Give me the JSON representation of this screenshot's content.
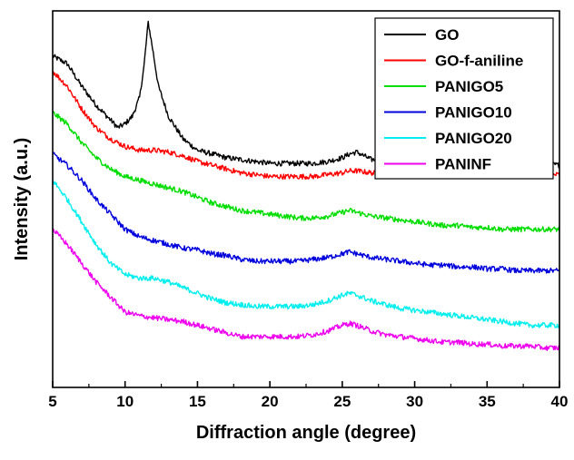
{
  "chart_data": {
    "type": "line",
    "title": "",
    "xlabel": "Diffraction angle (degree)",
    "ylabel": "Intensity (a.u.)",
    "xlim": [
      5,
      40
    ],
    "ylim": [
      0,
      100
    ],
    "x_ticks": [
      5,
      10,
      15,
      20,
      25,
      30,
      35,
      40
    ],
    "y_tick_labels_shown": false,
    "grid": false,
    "legend_position": "top-right",
    "series": [
      {
        "name": "GO",
        "color": "#000000",
        "points": [
          [
            5,
            88
          ],
          [
            6,
            86
          ],
          [
            7,
            80
          ],
          [
            8,
            75
          ],
          [
            9,
            71
          ],
          [
            9.5,
            69
          ],
          [
            10,
            70
          ],
          [
            10.5,
            72
          ],
          [
            11,
            77
          ],
          [
            11.3,
            85
          ],
          [
            11.6,
            97
          ],
          [
            11.9,
            90
          ],
          [
            12.3,
            80
          ],
          [
            13,
            72
          ],
          [
            14,
            66
          ],
          [
            15,
            63
          ],
          [
            16,
            62
          ],
          [
            17,
            61
          ],
          [
            18,
            60.5
          ],
          [
            19,
            60
          ],
          [
            20,
            59.5
          ],
          [
            21,
            59.5
          ],
          [
            22,
            59.5
          ],
          [
            23,
            59.5
          ],
          [
            24,
            60
          ],
          [
            25,
            61
          ],
          [
            25.5,
            62
          ],
          [
            26,
            62.5
          ],
          [
            26.5,
            61.5
          ],
          [
            27,
            60.5
          ],
          [
            28,
            60.5
          ],
          [
            29,
            60.5
          ],
          [
            30,
            61
          ],
          [
            31,
            61
          ],
          [
            32,
            61
          ],
          [
            33,
            61
          ],
          [
            34,
            61
          ],
          [
            35,
            60.5
          ],
          [
            36,
            60
          ],
          [
            37,
            60
          ],
          [
            38,
            59.5
          ],
          [
            39,
            59.5
          ],
          [
            40,
            59
          ]
        ]
      },
      {
        "name": "GO-f-aniline",
        "color": "#ff0000",
        "points": [
          [
            5,
            84
          ],
          [
            6,
            80
          ],
          [
            7,
            74
          ],
          [
            8,
            69
          ],
          [
            9,
            66
          ],
          [
            10,
            64
          ],
          [
            11,
            63
          ],
          [
            12,
            63
          ],
          [
            13,
            62.5
          ],
          [
            14,
            61.5
          ],
          [
            15,
            60
          ],
          [
            16,
            59
          ],
          [
            17,
            58
          ],
          [
            18,
            57
          ],
          [
            19,
            56.5
          ],
          [
            20,
            56
          ],
          [
            21,
            56
          ],
          [
            22,
            56
          ],
          [
            23,
            56
          ],
          [
            24,
            56.5
          ],
          [
            25,
            57
          ],
          [
            25.5,
            57.5
          ],
          [
            26,
            57.5
          ],
          [
            27,
            57
          ],
          [
            28,
            56.5
          ],
          [
            29,
            56.5
          ],
          [
            30,
            56.5
          ],
          [
            31,
            56.5
          ],
          [
            32,
            56.5
          ],
          [
            33,
            56.5
          ],
          [
            34,
            56.5
          ],
          [
            35,
            56.5
          ],
          [
            36,
            56.5
          ],
          [
            37,
            56.5
          ],
          [
            38,
            56.5
          ],
          [
            39,
            56.5
          ],
          [
            40,
            56.5
          ]
        ]
      },
      {
        "name": "PANIGO5",
        "color": "#00dd00",
        "points": [
          [
            5,
            73
          ],
          [
            6,
            70
          ],
          [
            7,
            65
          ],
          [
            8,
            61
          ],
          [
            9,
            58
          ],
          [
            10,
            56
          ],
          [
            11,
            55
          ],
          [
            12,
            54
          ],
          [
            13,
            53
          ],
          [
            14,
            52
          ],
          [
            15,
            50.5
          ],
          [
            16,
            49
          ],
          [
            17,
            48
          ],
          [
            18,
            47
          ],
          [
            19,
            46.5
          ],
          [
            20,
            46
          ],
          [
            21,
            45.5
          ],
          [
            22,
            45
          ],
          [
            23,
            45
          ],
          [
            24,
            45.5
          ],
          [
            25,
            46.5
          ],
          [
            25.5,
            47
          ],
          [
            26,
            46.5
          ],
          [
            27,
            45.5
          ],
          [
            28,
            45
          ],
          [
            29,
            44.5
          ],
          [
            30,
            44
          ],
          [
            31,
            43.5
          ],
          [
            32,
            43
          ],
          [
            33,
            43
          ],
          [
            34,
            42.5
          ],
          [
            35,
            42.5
          ],
          [
            36,
            42
          ],
          [
            37,
            42
          ],
          [
            38,
            42
          ],
          [
            39,
            42
          ],
          [
            40,
            42
          ]
        ]
      },
      {
        "name": "PANIGO10",
        "color": "#0000dd",
        "points": [
          [
            5,
            62
          ],
          [
            6,
            59
          ],
          [
            7,
            55
          ],
          [
            8,
            50
          ],
          [
            9,
            46
          ],
          [
            10,
            42
          ],
          [
            11,
            40
          ],
          [
            12,
            39
          ],
          [
            13,
            38
          ],
          [
            14,
            37
          ],
          [
            15,
            36.5
          ],
          [
            16,
            35.5
          ],
          [
            17,
            35
          ],
          [
            18,
            34
          ],
          [
            19,
            33.5
          ],
          [
            20,
            33.5
          ],
          [
            21,
            33.5
          ],
          [
            22,
            33.5
          ],
          [
            23,
            34
          ],
          [
            24,
            34.5
          ],
          [
            25,
            35.5
          ],
          [
            25.5,
            36
          ],
          [
            26,
            35.5
          ],
          [
            27,
            34.5
          ],
          [
            28,
            34
          ],
          [
            29,
            33.5
          ],
          [
            30,
            33
          ],
          [
            31,
            32.5
          ],
          [
            32,
            32.5
          ],
          [
            33,
            32
          ],
          [
            34,
            32
          ],
          [
            35,
            31.5
          ],
          [
            36,
            31.5
          ],
          [
            37,
            31
          ],
          [
            38,
            31
          ],
          [
            39,
            31
          ],
          [
            40,
            31
          ]
        ]
      },
      {
        "name": "PANIGO20",
        "color": "#00eeee",
        "points": [
          [
            5,
            55
          ],
          [
            6,
            50
          ],
          [
            7,
            44
          ],
          [
            8,
            38
          ],
          [
            9,
            33
          ],
          [
            10,
            30
          ],
          [
            11,
            29
          ],
          [
            12,
            29
          ],
          [
            13,
            28
          ],
          [
            14,
            26.5
          ],
          [
            15,
            25
          ],
          [
            16,
            23.5
          ],
          [
            17,
            22.5
          ],
          [
            18,
            22
          ],
          [
            19,
            21.5
          ],
          [
            20,
            21.5
          ],
          [
            21,
            21.5
          ],
          [
            22,
            21.5
          ],
          [
            23,
            22
          ],
          [
            24,
            23
          ],
          [
            25,
            24.5
          ],
          [
            25.5,
            25
          ],
          [
            26,
            24.5
          ],
          [
            27,
            23
          ],
          [
            28,
            22
          ],
          [
            29,
            21
          ],
          [
            30,
            20.5
          ],
          [
            31,
            20
          ],
          [
            32,
            19.5
          ],
          [
            33,
            19
          ],
          [
            34,
            18.5
          ],
          [
            35,
            18
          ],
          [
            36,
            17.5
          ],
          [
            37,
            17
          ],
          [
            38,
            16.5
          ],
          [
            39,
            16.5
          ],
          [
            40,
            16.5
          ]
        ]
      },
      {
        "name": "PANINF",
        "color": "#ee00ee",
        "points": [
          [
            5,
            42
          ],
          [
            6,
            38
          ],
          [
            7,
            33
          ],
          [
            8,
            28
          ],
          [
            9,
            24
          ],
          [
            10,
            20
          ],
          [
            11,
            19
          ],
          [
            12,
            18.5
          ],
          [
            13,
            18
          ],
          [
            14,
            17.5
          ],
          [
            15,
            16.5
          ],
          [
            16,
            15.5
          ],
          [
            17,
            14.5
          ],
          [
            18,
            13.5
          ],
          [
            19,
            13.5
          ],
          [
            20,
            13.5
          ],
          [
            21,
            13.5
          ],
          [
            22,
            13.5
          ],
          [
            23,
            14
          ],
          [
            24,
            15
          ],
          [
            25,
            16.5
          ],
          [
            25.5,
            17
          ],
          [
            26,
            16.5
          ],
          [
            27,
            15
          ],
          [
            28,
            14
          ],
          [
            29,
            13.5
          ],
          [
            30,
            13
          ],
          [
            31,
            12.5
          ],
          [
            32,
            12
          ],
          [
            33,
            12
          ],
          [
            34,
            11.5
          ],
          [
            35,
            11.5
          ],
          [
            36,
            11
          ],
          [
            37,
            11
          ],
          [
            38,
            11
          ],
          [
            39,
            10.5
          ],
          [
            40,
            10.5
          ]
        ]
      }
    ]
  }
}
